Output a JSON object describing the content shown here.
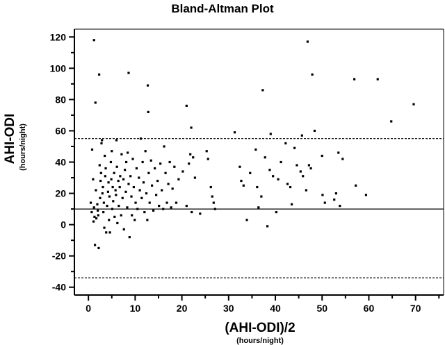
{
  "chart_data": {
    "type": "scatter",
    "title": "Bland-Altman Plot",
    "xlabel": "(AHI-ODI)/2",
    "xlabel_unit": "(hours/night)",
    "ylabel": "AHI-ODI",
    "ylabel_unit": "(hours/night)",
    "xlim": [
      -3,
      76
    ],
    "ylim": [
      -45,
      125
    ],
    "x_ticks": [
      0,
      10,
      20,
      30,
      40,
      50,
      60,
      70
    ],
    "y_ticks": [
      -40,
      -20,
      0,
      20,
      40,
      60,
      80,
      100,
      120
    ],
    "x_tick_labels": [
      "0",
      "10",
      "20",
      "30",
      "40",
      "50",
      "60",
      "70"
    ],
    "y_tick_labels": [
      "-40",
      "-20",
      "0",
      "20",
      "40",
      "60",
      "80",
      "100",
      "120"
    ],
    "mean_line": 10,
    "upper_limit": 55,
    "lower_limit": -34,
    "grid": false,
    "colors": {
      "points": "#000000",
      "lines": "#000000"
    },
    "points": [
      [
        1.2,
        118
      ],
      [
        1.5,
        78
      ],
      [
        2.3,
        96
      ],
      [
        8.6,
        97
      ],
      [
        12.7,
        89
      ],
      [
        12.8,
        72
      ],
      [
        21.0,
        76
      ],
      [
        22.0,
        62
      ],
      [
        46.9,
        117
      ],
      [
        47.9,
        96
      ],
      [
        56.9,
        93
      ],
      [
        61.9,
        93
      ],
      [
        69.6,
        77
      ],
      [
        64.8,
        66
      ],
      [
        37.3,
        86
      ],
      [
        31.3,
        59
      ],
      [
        39.0,
        58
      ],
      [
        45.7,
        57
      ],
      [
        48.4,
        60
      ],
      [
        44.1,
        49
      ],
      [
        42.2,
        52
      ],
      [
        0.5,
        14
      ],
      [
        0.7,
        8
      ],
      [
        0.8,
        48
      ],
      [
        1.0,
        29
      ],
      [
        1.1,
        2
      ],
      [
        1.2,
        11
      ],
      [
        1.3,
        5
      ],
      [
        1.4,
        -13
      ],
      [
        1.6,
        22
      ],
      [
        1.7,
        4
      ],
      [
        1.9,
        13
      ],
      [
        2.0,
        9
      ],
      [
        2.1,
        6
      ],
      [
        2.2,
        -15
      ],
      [
        2.4,
        38
      ],
      [
        2.5,
        17
      ],
      [
        2.6,
        28
      ],
      [
        2.7,
        33
      ],
      [
        2.8,
        52
      ],
      [
        2.9,
        54
      ],
      [
        3.0,
        20
      ],
      [
        3.1,
        24
      ],
      [
        3.2,
        8
      ],
      [
        3.3,
        14
      ],
      [
        3.4,
        -2
      ],
      [
        3.5,
        44
      ],
      [
        3.6,
        31
      ],
      [
        3.7,
        36
      ],
      [
        3.8,
        -5
      ],
      [
        4.0,
        12
      ],
      [
        4.2,
        21
      ],
      [
        4.3,
        27
      ],
      [
        4.4,
        3
      ],
      [
        4.5,
        18
      ],
      [
        4.6,
        -5
      ],
      [
        4.8,
        40
      ],
      [
        4.9,
        29
      ],
      [
        5.0,
        47
      ],
      [
        5.1,
        10
      ],
      [
        5.2,
        24
      ],
      [
        5.3,
        15
      ],
      [
        5.5,
        33
      ],
      [
        5.6,
        5
      ],
      [
        5.8,
        22
      ],
      [
        5.9,
        19
      ],
      [
        6.0,
        54
      ],
      [
        6.1,
        37
      ],
      [
        6.2,
        1
      ],
      [
        6.4,
        28
      ],
      [
        6.5,
        12
      ],
      [
        6.7,
        24
      ],
      [
        6.8,
        31
      ],
      [
        7.0,
        6
      ],
      [
        7.1,
        45
      ],
      [
        7.3,
        17
      ],
      [
        7.5,
        29
      ],
      [
        7.6,
        -3
      ],
      [
        7.8,
        35
      ],
      [
        8.0,
        21
      ],
      [
        8.1,
        40
      ],
      [
        8.3,
        11
      ],
      [
        8.4,
        46
      ],
      [
        8.6,
        26
      ],
      [
        8.8,
        -8
      ],
      [
        9.0,
        31
      ],
      [
        9.2,
        18
      ],
      [
        9.3,
        6
      ],
      [
        9.5,
        42
      ],
      [
        9.7,
        24
      ],
      [
        9.9,
        3
      ],
      [
        10.1,
        14
      ],
      [
        10.3,
        36
      ],
      [
        10.5,
        10
      ],
      [
        10.8,
        30
      ],
      [
        11.0,
        22
      ],
      [
        11.2,
        55
      ],
      [
        11.4,
        17
      ],
      [
        11.6,
        40
      ],
      [
        11.8,
        27
      ],
      [
        12.0,
        8
      ],
      [
        12.2,
        47
      ],
      [
        12.4,
        20
      ],
      [
        12.6,
        3
      ],
      [
        12.9,
        33
      ],
      [
        13.1,
        14
      ],
      [
        13.4,
        41
      ],
      [
        13.6,
        25
      ],
      [
        13.9,
        9
      ],
      [
        14.2,
        36
      ],
      [
        14.5,
        19
      ],
      [
        14.8,
        28
      ],
      [
        15.1,
        12
      ],
      [
        15.4,
        39
      ],
      [
        15.7,
        22
      ],
      [
        16.0,
        10
      ],
      [
        16.2,
        50
      ],
      [
        16.5,
        33
      ],
      [
        16.8,
        14
      ],
      [
        17.1,
        26
      ],
      [
        17.4,
        40
      ],
      [
        17.7,
        11
      ],
      [
        18.0,
        23
      ],
      [
        18.4,
        37
      ],
      [
        18.8,
        14
      ],
      [
        19.3,
        29
      ],
      [
        20.2,
        34
      ],
      [
        21.0,
        12
      ],
      [
        21.5,
        39
      ],
      [
        21.8,
        45
      ],
      [
        22.1,
        8
      ],
      [
        22.4,
        43
      ],
      [
        22.8,
        30
      ],
      [
        23.9,
        7
      ],
      [
        25.3,
        47
      ],
      [
        25.6,
        42
      ],
      [
        26.2,
        24
      ],
      [
        26.5,
        18
      ],
      [
        26.8,
        14
      ],
      [
        27.1,
        10
      ],
      [
        32.4,
        37
      ],
      [
        32.7,
        28
      ],
      [
        33.2,
        25
      ],
      [
        33.9,
        3
      ],
      [
        34.6,
        33
      ],
      [
        35.8,
        48
      ],
      [
        36.1,
        24
      ],
      [
        36.4,
        11
      ],
      [
        37.0,
        18
      ],
      [
        37.8,
        43
      ],
      [
        38.3,
        -1
      ],
      [
        38.8,
        35
      ],
      [
        39.5,
        31
      ],
      [
        40.2,
        8
      ],
      [
        40.6,
        29
      ],
      [
        41.2,
        40
      ],
      [
        42.6,
        26
      ],
      [
        43.2,
        24
      ],
      [
        44.6,
        38
      ],
      [
        45.4,
        34
      ],
      [
        45.9,
        31
      ],
      [
        46.6,
        22
      ],
      [
        47.2,
        38
      ],
      [
        47.6,
        36
      ],
      [
        50.0,
        44
      ],
      [
        50.1,
        19
      ],
      [
        50.6,
        14
      ],
      [
        53.0,
        20
      ],
      [
        53.5,
        46
      ],
      [
        53.8,
        12
      ],
      [
        54.4,
        42
      ],
      [
        57.2,
        25
      ],
      [
        59.4,
        19
      ],
      [
        52.6,
        16
      ],
      [
        43.5,
        13
      ]
    ]
  }
}
